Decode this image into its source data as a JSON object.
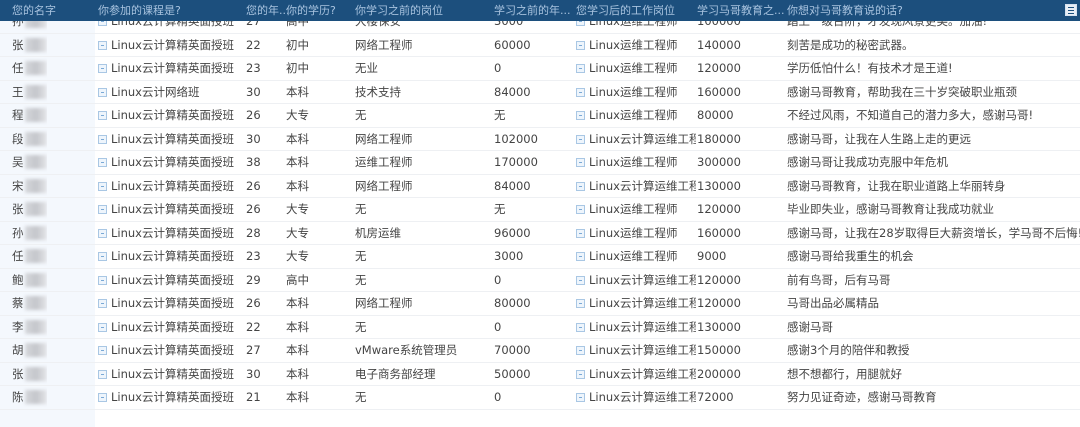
{
  "header": {
    "columns": [
      "您的名字",
      "你参加的课程是?",
      "您的年...",
      "你的学历?",
      "你学习之前的岗位",
      "学习之前的年...",
      "您学习后的工作岗位",
      "学习马哥教育之...",
      "你想对马哥教育说的话?"
    ],
    "menu_icon": "list-icon"
  },
  "rows": [
    {
      "name": "孙",
      "course": "Linux云计算精英面授班",
      "age": "27",
      "edu": "高中",
      "prev_job": "大楼保安",
      "prev_salary": "3000",
      "new_job": "Linux运维工程师",
      "new_salary": "100000",
      "words": "踏上一级台阶，才发现风景更美。加油!"
    },
    {
      "name": "张",
      "course": "Linux云计算精英面授班",
      "age": "22",
      "edu": "初中",
      "prev_job": "网络工程师",
      "prev_salary": "60000",
      "new_job": "Linux运维工程师",
      "new_salary": "140000",
      "words": "刻苦是成功的秘密武器。"
    },
    {
      "name": "任",
      "course": "Linux云计算精英面授班",
      "age": "23",
      "edu": "初中",
      "prev_job": "无业",
      "prev_salary": "0",
      "new_job": "Linux运维工程师",
      "new_salary": "120000",
      "words": "学历低怕什么！有技术才是王道!"
    },
    {
      "name": "王",
      "course": "Linux云计网络班",
      "age": "30",
      "edu": "本科",
      "prev_job": "技术支持",
      "prev_salary": "84000",
      "new_job": "Linux运维工程师",
      "new_salary": "160000",
      "words": "感谢马哥教育，帮助我在三十岁突破职业瓶颈"
    },
    {
      "name": "程",
      "course": "Linux云计算精英面授班",
      "age": "26",
      "edu": "大专",
      "prev_job": "无",
      "prev_salary": "无",
      "new_job": "Linux运维工程师",
      "new_salary": "80000",
      "words": "不经过风雨，不知道自己的潜力多大，感谢马哥!"
    },
    {
      "name": "段",
      "course": "Linux云计算精英面授班",
      "age": "30",
      "edu": "本科",
      "prev_job": "网络工程师",
      "prev_salary": "102000",
      "new_job": "Linux云计算运维工程师",
      "new_salary": "180000",
      "words": "感谢马哥，让我在人生路上走的更远"
    },
    {
      "name": "吴",
      "course": "Linux云计算精英面授班",
      "age": "38",
      "edu": "本科",
      "prev_job": "运维工程师",
      "prev_salary": "170000",
      "new_job": "Linux运维工程师",
      "new_salary": "300000",
      "words": "感谢马哥让我成功克服中年危机"
    },
    {
      "name": "宋",
      "course": "Linux云计算精英面授班",
      "age": "26",
      "edu": "本科",
      "prev_job": "网络工程师",
      "prev_salary": "84000",
      "new_job": "Linux云计算运维工程师",
      "new_salary": "130000",
      "words": "感谢马哥教育，让我在职业道路上华丽转身"
    },
    {
      "name": "张",
      "course": "Linux云计算精英面授班",
      "age": "26",
      "edu": "大专",
      "prev_job": "无",
      "prev_salary": "无",
      "new_job": "Linux运维工程师",
      "new_salary": "120000",
      "words": "毕业即失业，感谢马哥教育让我成功就业"
    },
    {
      "name": "孙",
      "course": "Linux云计算精英面授班",
      "age": "28",
      "edu": "大专",
      "prev_job": "机房运维",
      "prev_salary": "96000",
      "new_job": "Linux运维工程师",
      "new_salary": "160000",
      "words": "感谢马哥，让我在28岁取得巨大薪资增长，学马哥不后悔!"
    },
    {
      "name": "任",
      "course": "Linux云计算精英面授班",
      "age": "23",
      "edu": "大专",
      "prev_job": "无",
      "prev_salary": "3000",
      "new_job": "Linux运维工程师",
      "new_salary": "9000",
      "words": "感谢马哥给我重生的机会"
    },
    {
      "name": "鲍",
      "course": "Linux云计算精英面授班",
      "age": "29",
      "edu": "高中",
      "prev_job": "无",
      "prev_salary": "0",
      "new_job": "Linux云计算运维工程师",
      "new_salary": "120000",
      "words": "前有鸟哥，后有马哥"
    },
    {
      "name": "蔡",
      "course": "Linux云计算精英面授班",
      "age": "26",
      "edu": "本科",
      "prev_job": "网络工程师",
      "prev_salary": "80000",
      "new_job": "Linux云计算运维工程师",
      "new_salary": "120000",
      "words": "马哥出品必属精品"
    },
    {
      "name": "李",
      "course": "Linux云计算精英面授班",
      "age": "22",
      "edu": "本科",
      "prev_job": "无",
      "prev_salary": "0",
      "new_job": "Linux云计算运维工程师",
      "new_salary": "130000",
      "words": "感谢马哥"
    },
    {
      "name": "胡",
      "course": "Linux云计算精英面授班",
      "age": "27",
      "edu": "本科",
      "prev_job": "vMware系统管理员",
      "prev_salary": "70000",
      "new_job": "Linux云计算运维工程师",
      "new_salary": "150000",
      "words": "感谢3个月的陪伴和教授"
    },
    {
      "name": "张",
      "course": "Linux云计算精英面授班",
      "age": "30",
      "edu": "本科",
      "prev_job": "电子商务部经理",
      "prev_salary": "50000",
      "new_job": "Linux云计算运维工程师",
      "new_salary": "200000",
      "words": "想不想都行，用腿就好"
    },
    {
      "name": "陈",
      "course": "Linux云计算精英面授班",
      "age": "21",
      "edu": "本科",
      "prev_job": "无",
      "prev_salary": "0",
      "new_job": "Linux云计算运维工程师",
      "new_salary": "72000",
      "words": "努力见证奇迹，感谢马哥教育"
    }
  ]
}
